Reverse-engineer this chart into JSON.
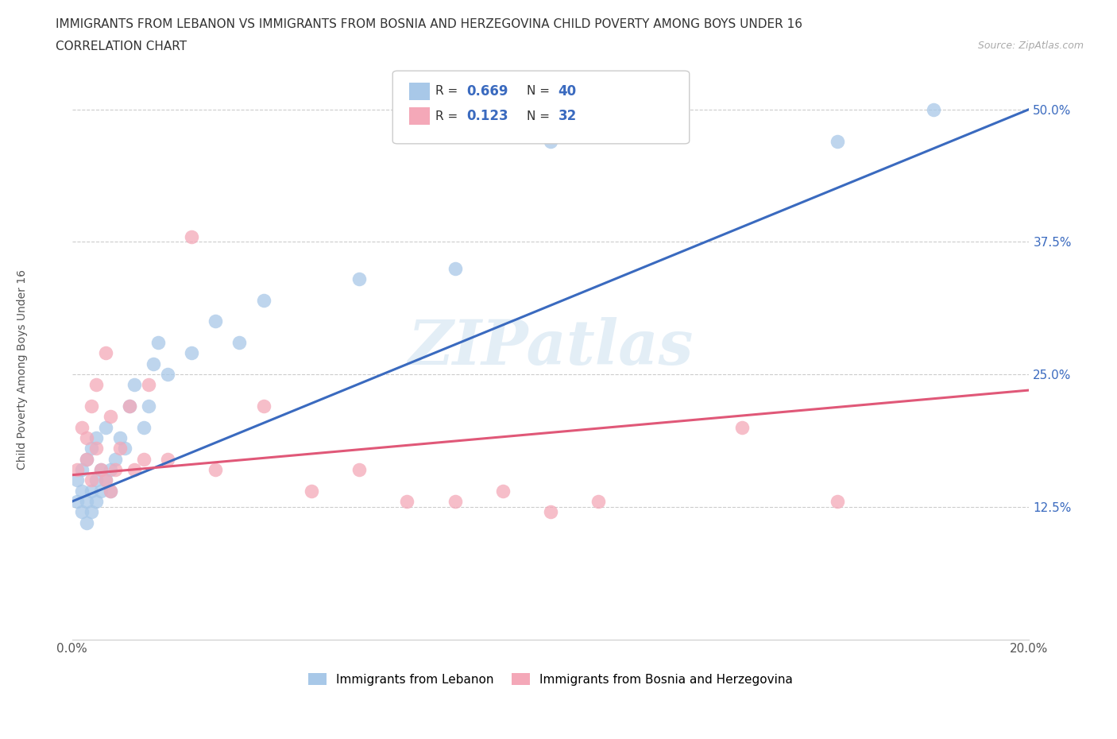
{
  "title_line1": "IMMIGRANTS FROM LEBANON VS IMMIGRANTS FROM BOSNIA AND HERZEGOVINA CHILD POVERTY AMONG BOYS UNDER 16",
  "title_line2": "CORRELATION CHART",
  "source": "Source: ZipAtlas.com",
  "ylabel": "Child Poverty Among Boys Under 16",
  "xlim": [
    0.0,
    0.2
  ],
  "ylim": [
    0.0,
    0.55
  ],
  "yticks": [
    0.125,
    0.25,
    0.375,
    0.5
  ],
  "ytick_labels": [
    "12.5%",
    "25.0%",
    "37.5%",
    "50.0%"
  ],
  "xticks": [
    0.0,
    0.05,
    0.1,
    0.15,
    0.2
  ],
  "xtick_labels": [
    "0.0%",
    "",
    "",
    "",
    "20.0%"
  ],
  "blue_R": 0.669,
  "blue_N": 40,
  "pink_R": 0.123,
  "pink_N": 32,
  "blue_color": "#a8c8e8",
  "pink_color": "#f4a8b8",
  "blue_line_color": "#3a6abf",
  "pink_line_color": "#e05878",
  "tick_color": "#3a6abf",
  "watermark": "ZIPatlas",
  "blue_scatter_x": [
    0.001,
    0.001,
    0.002,
    0.002,
    0.002,
    0.003,
    0.003,
    0.003,
    0.004,
    0.004,
    0.004,
    0.005,
    0.005,
    0.005,
    0.006,
    0.006,
    0.007,
    0.007,
    0.008,
    0.008,
    0.009,
    0.01,
    0.011,
    0.012,
    0.013,
    0.015,
    0.016,
    0.017,
    0.018,
    0.02,
    0.025,
    0.03,
    0.035,
    0.04,
    0.06,
    0.08,
    0.1,
    0.12,
    0.16,
    0.18
  ],
  "blue_scatter_y": [
    0.13,
    0.15,
    0.12,
    0.14,
    0.16,
    0.11,
    0.13,
    0.17,
    0.12,
    0.14,
    0.18,
    0.13,
    0.15,
    0.19,
    0.14,
    0.16,
    0.15,
    0.2,
    0.14,
    0.16,
    0.17,
    0.19,
    0.18,
    0.22,
    0.24,
    0.2,
    0.22,
    0.26,
    0.28,
    0.25,
    0.27,
    0.3,
    0.28,
    0.32,
    0.34,
    0.35,
    0.47,
    0.48,
    0.47,
    0.5
  ],
  "pink_scatter_x": [
    0.001,
    0.002,
    0.003,
    0.003,
    0.004,
    0.004,
    0.005,
    0.005,
    0.006,
    0.007,
    0.007,
    0.008,
    0.008,
    0.009,
    0.01,
    0.012,
    0.013,
    0.015,
    0.016,
    0.02,
    0.025,
    0.03,
    0.04,
    0.05,
    0.06,
    0.07,
    0.08,
    0.09,
    0.1,
    0.11,
    0.14,
    0.16
  ],
  "pink_scatter_y": [
    0.16,
    0.2,
    0.17,
    0.19,
    0.15,
    0.22,
    0.18,
    0.24,
    0.16,
    0.15,
    0.27,
    0.14,
    0.21,
    0.16,
    0.18,
    0.22,
    0.16,
    0.17,
    0.24,
    0.17,
    0.38,
    0.16,
    0.22,
    0.14,
    0.16,
    0.13,
    0.13,
    0.14,
    0.12,
    0.13,
    0.2,
    0.13
  ],
  "blue_line_x0": 0.0,
  "blue_line_y0": 0.13,
  "blue_line_x1": 0.2,
  "blue_line_y1": 0.5,
  "pink_line_x0": 0.0,
  "pink_line_y0": 0.155,
  "pink_line_x1": 0.2,
  "pink_line_y1": 0.235,
  "title_fontsize": 11,
  "subtitle_fontsize": 11,
  "axis_label_fontsize": 10,
  "tick_fontsize": 11
}
